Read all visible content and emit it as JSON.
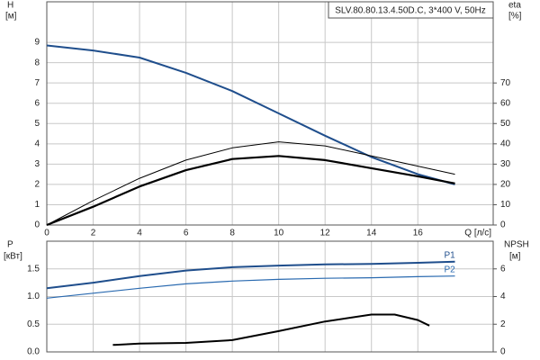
{
  "chart_data": [
    {
      "type": "line",
      "title": "SLV.80.80.13.4.50D.C, 3*400 V, 50Hz",
      "y_label": "H",
      "y_unit": "[м]",
      "y2_label": "eta",
      "y2_unit": "[%]",
      "x_label": "Q [л/с]",
      "xlim": [
        0,
        19.25
      ],
      "xticks": [
        0,
        2,
        4,
        6,
        8,
        10,
        12,
        14,
        16
      ],
      "ylim": [
        0,
        11
      ],
      "yticks": [
        0,
        1,
        2,
        3,
        4,
        5,
        6,
        7,
        8,
        9
      ],
      "y2lim": [
        0,
        110
      ],
      "y2ticks": [
        0,
        10,
        20,
        30,
        40,
        50,
        60,
        70
      ],
      "grid": true,
      "series": [
        {
          "color": "#1f4e8c",
          "linewidth": 2,
          "x": [
            0,
            2,
            4,
            6,
            8,
            10,
            12,
            14,
            16,
            17.6
          ],
          "values": [
            8.85,
            8.6,
            8.25,
            7.5,
            6.6,
            5.5,
            4.4,
            3.35,
            2.5,
            2.0
          ]
        },
        {
          "color": "#000000",
          "linewidth": 1,
          "axis": "y2",
          "x": [
            0,
            2,
            4,
            6,
            8,
            10,
            12,
            14,
            16,
            17.6
          ],
          "values": [
            0,
            12,
            23,
            32,
            38,
            41,
            39,
            34,
            29,
            25
          ]
        },
        {
          "color": "#000000",
          "linewidth": 2.2,
          "axis": "y2",
          "x": [
            0,
            2,
            4,
            6,
            8,
            10,
            12,
            14,
            16,
            17.6
          ],
          "values": [
            0,
            9,
            19,
            27,
            32.5,
            34,
            32,
            28,
            24,
            20.5
          ]
        }
      ]
    },
    {
      "type": "line",
      "y_label": "P",
      "y_unit": "[кВт]",
      "y2_label": "NPSH",
      "y2_unit": "[м]",
      "xlim": [
        0,
        19.25
      ],
      "ylim": [
        0,
        2
      ],
      "yticks": [
        {
          "value": 0,
          "label": "0.0"
        },
        0.5,
        {
          "value": 1,
          "label": "1.0"
        },
        1.5
      ],
      "y2lim": [
        0,
        8
      ],
      "y2ticks": [
        0,
        2,
        4,
        6
      ],
      "grid": true,
      "series": [
        {
          "name": "P1",
          "color": "#1f4e8c",
          "linewidth": 2,
          "x": [
            0,
            2,
            4,
            6,
            8,
            10,
            12,
            14,
            16,
            17.6
          ],
          "values": [
            1.15,
            1.25,
            1.37,
            1.47,
            1.53,
            1.56,
            1.58,
            1.59,
            1.61,
            1.63
          ]
        },
        {
          "name": "P2",
          "color": "#2a6ab0",
          "linewidth": 1.2,
          "x": [
            0,
            2,
            4,
            6,
            8,
            10,
            12,
            14,
            16,
            17.6
          ],
          "values": [
            0.97,
            1.06,
            1.15,
            1.23,
            1.28,
            1.31,
            1.33,
            1.34,
            1.36,
            1.37
          ]
        },
        {
          "color": "#000000",
          "linewidth": 2,
          "axis": "y2",
          "x": [
            2.85,
            4,
            6,
            8,
            10,
            12,
            14,
            15,
            16,
            16.5
          ],
          "values": [
            0.5,
            0.6,
            0.65,
            0.85,
            1.5,
            2.2,
            2.7,
            2.7,
            2.3,
            1.9
          ]
        }
      ]
    }
  ]
}
